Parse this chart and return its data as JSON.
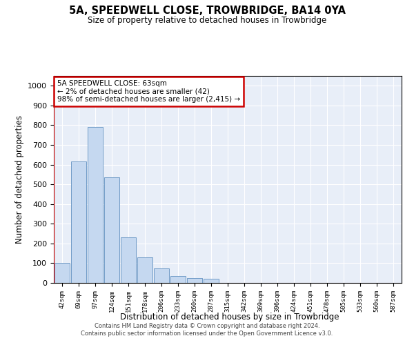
{
  "title": "5A, SPEEDWELL CLOSE, TROWBRIDGE, BA14 0YA",
  "subtitle": "Size of property relative to detached houses in Trowbridge",
  "xlabel": "Distribution of detached houses by size in Trowbridge",
  "ylabel": "Number of detached properties",
  "bar_color": "#c5d8f0",
  "bar_edge_color": "#6090c0",
  "background_color": "#e8eef8",
  "categories": [
    "42sqm",
    "69sqm",
    "97sqm",
    "124sqm",
    "151sqm",
    "178sqm",
    "206sqm",
    "233sqm",
    "260sqm",
    "287sqm",
    "315sqm",
    "342sqm",
    "369sqm",
    "396sqm",
    "424sqm",
    "451sqm",
    "478sqm",
    "505sqm",
    "533sqm",
    "560sqm",
    "587sqm"
  ],
  "values": [
    100,
    615,
    790,
    535,
    230,
    130,
    75,
    35,
    25,
    20,
    0,
    0,
    0,
    0,
    0,
    0,
    0,
    0,
    0,
    0,
    0
  ],
  "ylim": [
    0,
    1050
  ],
  "yticks": [
    0,
    100,
    200,
    300,
    400,
    500,
    600,
    700,
    800,
    900,
    1000
  ],
  "annotation_text": "5A SPEEDWELL CLOSE: 63sqm\n← 2% of detached houses are smaller (42)\n98% of semi-detached houses are larger (2,415) →",
  "annotation_box_color": "#ffffff",
  "annotation_box_edge_color": "#cc0000",
  "footer_line1": "Contains HM Land Registry data © Crown copyright and database right 2024.",
  "footer_line2": "Contains public sector information licensed under the Open Government Licence v3.0.",
  "grid_color": "#ffffff",
  "red_line_x": -0.48
}
